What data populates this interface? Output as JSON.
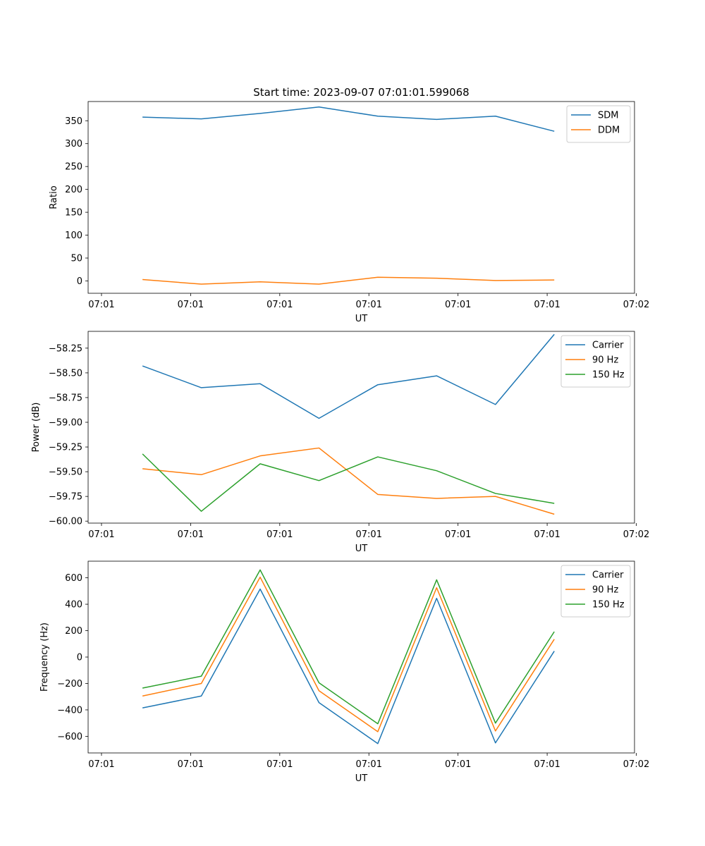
{
  "figure_title": "Start time: 2023-09-07 07:01:01.599068",
  "colors": {
    "blue": "#1f77b4",
    "orange": "#ff7f0e",
    "green": "#2ca02c"
  },
  "chart_data": [
    {
      "type": "line",
      "title": "Start time: 2023-09-07 07:01:01.599068",
      "xlabel": "UT",
      "ylabel": "Ratio",
      "legend_position": "top-right",
      "grid": false,
      "x_range": [
        -0.15,
        5.98
      ],
      "x_ticks": [
        0,
        1,
        2,
        3,
        4,
        5,
        6
      ],
      "x_tick_labels": [
        "07:01",
        "07:01",
        "07:01",
        "07:01",
        "07:01",
        "07:01",
        "07:02"
      ],
      "ylim": [
        -27,
        392
      ],
      "y_ticks": [
        0,
        50,
        100,
        150,
        200,
        250,
        300,
        350
      ],
      "y_tick_labels": [
        "0",
        "50",
        "100",
        "150",
        "200",
        "250",
        "300",
        "350"
      ],
      "x": [
        0.46,
        1.12,
        1.78,
        2.44,
        3.1,
        3.76,
        4.42,
        5.08
      ],
      "series": [
        {
          "name": "SDM",
          "color": "#1f77b4",
          "values": [
            358,
            354,
            366,
            380,
            360,
            353,
            360,
            327
          ]
        },
        {
          "name": "DDM",
          "color": "#ff7f0e",
          "values": [
            3,
            -7,
            -2,
            -7,
            8,
            6,
            1,
            2
          ]
        }
      ]
    },
    {
      "type": "line",
      "title": "",
      "xlabel": "UT",
      "ylabel": "Power (dB)",
      "legend_position": "top-right",
      "grid": false,
      "x_range": [
        -0.15,
        5.98
      ],
      "x_ticks": [
        0,
        1,
        2,
        3,
        4,
        5,
        6
      ],
      "x_tick_labels": [
        "07:01",
        "07:01",
        "07:01",
        "07:01",
        "07:01",
        "07:01",
        "07:02"
      ],
      "ylim": [
        -60.02,
        -58.08
      ],
      "y_ticks": [
        -60.0,
        -59.75,
        -59.5,
        -59.25,
        -59.0,
        -58.75,
        -58.5,
        -58.25
      ],
      "y_tick_labels": [
        "−60.00",
        "−59.75",
        "−59.50",
        "−59.25",
        "−59.00",
        "−58.75",
        "−58.50",
        "−58.25"
      ],
      "x": [
        0.46,
        1.12,
        1.78,
        2.44,
        3.1,
        3.76,
        4.42,
        5.08
      ],
      "series": [
        {
          "name": "Carrier",
          "color": "#1f77b4",
          "values": [
            -58.43,
            -58.65,
            -58.61,
            -58.96,
            -58.62,
            -58.53,
            -58.82,
            -58.11
          ]
        },
        {
          "name": "90 Hz",
          "color": "#ff7f0e",
          "values": [
            -59.47,
            -59.53,
            -59.34,
            -59.26,
            -59.73,
            -59.77,
            -59.75,
            -59.93
          ]
        },
        {
          "name": "150 Hz",
          "color": "#2ca02c",
          "values": [
            -59.32,
            -59.9,
            -59.42,
            -59.59,
            -59.35,
            -59.49,
            -59.72,
            -59.82
          ]
        }
      ]
    },
    {
      "type": "line",
      "title": "",
      "xlabel": "UT",
      "ylabel": "Frequency (Hz)",
      "legend_position": "top-right",
      "grid": false,
      "x_range": [
        -0.15,
        5.98
      ],
      "x_ticks": [
        0,
        1,
        2,
        3,
        4,
        5,
        6
      ],
      "x_tick_labels": [
        "07:01",
        "07:01",
        "07:01",
        "07:01",
        "07:01",
        "07:01",
        "07:02"
      ],
      "ylim": [
        -726,
        726
      ],
      "y_ticks": [
        -600,
        -400,
        -200,
        0,
        200,
        400,
        600
      ],
      "y_tick_labels": [
        "−600",
        "−400",
        "−200",
        "0",
        "200",
        "400",
        "600"
      ],
      "x": [
        0.46,
        1.12,
        1.78,
        2.44,
        3.1,
        3.76,
        4.42,
        5.08
      ],
      "series": [
        {
          "name": "Carrier",
          "color": "#1f77b4",
          "values": [
            -385,
            -295,
            515,
            -345,
            -655,
            445,
            -650,
            45
          ]
        },
        {
          "name": "90 Hz",
          "color": "#ff7f0e",
          "values": [
            -295,
            -200,
            605,
            -255,
            -565,
            525,
            -560,
            135
          ]
        },
        {
          "name": "150 Hz",
          "color": "#2ca02c",
          "values": [
            -235,
            -145,
            660,
            -195,
            -505,
            585,
            -500,
            192
          ]
        }
      ]
    }
  ]
}
